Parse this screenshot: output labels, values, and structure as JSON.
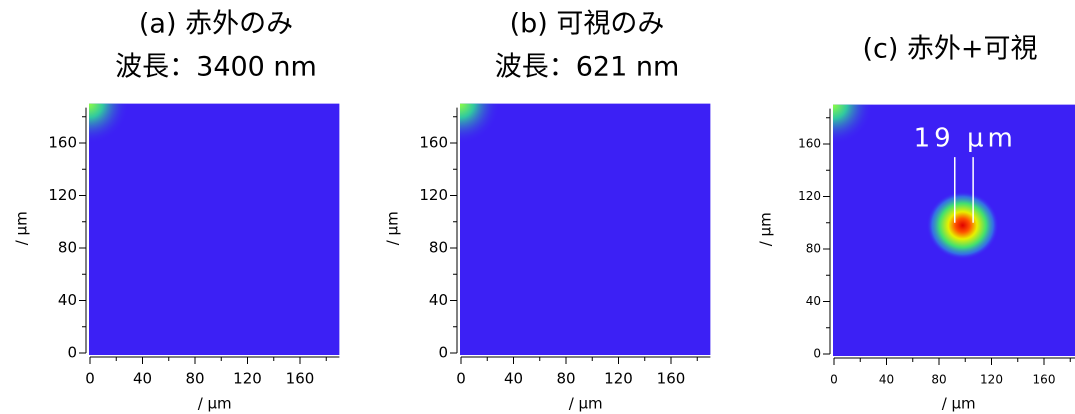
{
  "chart_data": [
    {
      "type": "image",
      "title": "(a) 赤外のみ",
      "subtitle": "波長：3400 nm",
      "x_label": "/ µm",
      "y_label": "/ µm",
      "xlim": [
        0,
        190
      ],
      "ylim": [
        0,
        190
      ],
      "xticks": [
        0,
        40,
        80,
        120,
        160
      ],
      "yticks": [
        0,
        40,
        80,
        120,
        160
      ]
    },
    {
      "type": "image",
      "title": "(b) 可視のみ",
      "subtitle": "波長：621 nm",
      "x_label": "/ µm",
      "y_label": "/ µm",
      "xlim": [
        0,
        190
      ],
      "ylim": [
        0,
        190
      ],
      "xticks": [
        0,
        40,
        80,
        120,
        160
      ],
      "yticks": [
        0,
        40,
        80,
        120,
        160
      ]
    },
    {
      "type": "image",
      "title": "(c)  赤外+可視",
      "annotation": "19 µm",
      "x_label": "/ µm",
      "y_label": "/ µm",
      "xlim": [
        0,
        190
      ],
      "ylim": [
        0,
        190
      ],
      "xticks": [
        0,
        40,
        80,
        120,
        160
      ],
      "yticks": [
        0,
        40,
        80,
        120,
        160
      ]
    }
  ]
}
